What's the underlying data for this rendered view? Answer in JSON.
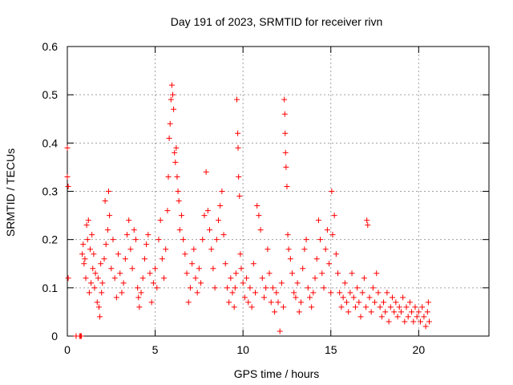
{
  "chart_data": {
    "type": "scatter",
    "title": "Day 191 of 2023, SRMTID for receiver rivn",
    "xlabel": "GPS time / hours",
    "ylabel": "SRMTID / TECUs",
    "xlim": [
      0,
      24
    ],
    "ylim": [
      0,
      0.6
    ],
    "xticks": [
      "0",
      "5",
      "10",
      "15",
      "20"
    ],
    "xtick_values": [
      0,
      5,
      10,
      15,
      20
    ],
    "yticks": [
      "0",
      "0.1",
      "0.2",
      "0.3",
      "0.4",
      "0.5",
      "0.6"
    ],
    "ytick_values": [
      0,
      0.1,
      0.2,
      0.3,
      0.4,
      0.5,
      0.6
    ],
    "grid": true,
    "marker": "+",
    "color": "#ff0000",
    "series": [
      {
        "name": "SRMTID",
        "points": [
          [
            0.0,
            0.39
          ],
          [
            0.0,
            0.33
          ],
          [
            0.05,
            0.31
          ],
          [
            0.05,
            0.12
          ],
          [
            0.5,
            0.0
          ],
          [
            0.7,
            0.0
          ],
          [
            0.75,
            0.0
          ],
          [
            0.8,
            0.0
          ],
          [
            0.85,
            0.17
          ],
          [
            0.9,
            0.19
          ],
          [
            0.95,
            0.15
          ],
          [
            1.0,
            0.16
          ],
          [
            1.05,
            0.12
          ],
          [
            1.1,
            0.23
          ],
          [
            1.15,
            0.2
          ],
          [
            1.2,
            0.24
          ],
          [
            1.25,
            0.09
          ],
          [
            1.3,
            0.18
          ],
          [
            1.35,
            0.11
          ],
          [
            1.4,
            0.21
          ],
          [
            1.45,
            0.14
          ],
          [
            1.5,
            0.17
          ],
          [
            1.55,
            0.1
          ],
          [
            1.6,
            0.13
          ],
          [
            1.7,
            0.07
          ],
          [
            1.75,
            0.12
          ],
          [
            1.8,
            0.06
          ],
          [
            1.85,
            0.04
          ],
          [
            1.9,
            0.15
          ],
          [
            1.95,
            0.09
          ],
          [
            2.0,
            0.11
          ],
          [
            2.1,
            0.16
          ],
          [
            2.15,
            0.28
          ],
          [
            2.2,
            0.19
          ],
          [
            2.3,
            0.22
          ],
          [
            2.35,
            0.3
          ],
          [
            2.4,
            0.25
          ],
          [
            2.5,
            0.14
          ],
          [
            2.6,
            0.2
          ],
          [
            2.7,
            0.12
          ],
          [
            2.8,
            0.08
          ],
          [
            2.9,
            0.17
          ],
          [
            3.0,
            0.13
          ],
          [
            3.1,
            0.09
          ],
          [
            3.2,
            0.11
          ],
          [
            3.3,
            0.16
          ],
          [
            3.4,
            0.21
          ],
          [
            3.5,
            0.24
          ],
          [
            3.6,
            0.18
          ],
          [
            3.7,
            0.14
          ],
          [
            3.8,
            0.22
          ],
          [
            3.9,
            0.2
          ],
          [
            4.0,
            0.1
          ],
          [
            4.05,
            0.08
          ],
          [
            4.1,
            0.06
          ],
          [
            4.2,
            0.09
          ],
          [
            4.3,
            0.12
          ],
          [
            4.4,
            0.16
          ],
          [
            4.5,
            0.19
          ],
          [
            4.6,
            0.21
          ],
          [
            4.7,
            0.13
          ],
          [
            4.8,
            0.07
          ],
          [
            4.9,
            0.11
          ],
          [
            5.0,
            0.14
          ],
          [
            5.1,
            0.1
          ],
          [
            5.2,
            0.2
          ],
          [
            5.3,
            0.24
          ],
          [
            5.4,
            0.16
          ],
          [
            5.5,
            0.12
          ],
          [
            5.6,
            0.18
          ],
          [
            5.7,
            0.26
          ],
          [
            5.75,
            0.33
          ],
          [
            5.8,
            0.41
          ],
          [
            5.85,
            0.44
          ],
          [
            5.9,
            0.49
          ],
          [
            5.95,
            0.52
          ],
          [
            6.0,
            0.5
          ],
          [
            6.05,
            0.47
          ],
          [
            6.1,
            0.38
          ],
          [
            6.15,
            0.36
          ],
          [
            6.2,
            0.39
          ],
          [
            6.25,
            0.33
          ],
          [
            6.3,
            0.3
          ],
          [
            6.35,
            0.28
          ],
          [
            6.4,
            0.22
          ],
          [
            6.5,
            0.25
          ],
          [
            6.6,
            0.2
          ],
          [
            6.7,
            0.17
          ],
          [
            6.8,
            0.13
          ],
          [
            6.9,
            0.07
          ],
          [
            7.0,
            0.1
          ],
          [
            7.1,
            0.15
          ],
          [
            7.2,
            0.18
          ],
          [
            7.3,
            0.12
          ],
          [
            7.4,
            0.09
          ],
          [
            7.5,
            0.14
          ],
          [
            7.6,
            0.11
          ],
          [
            7.7,
            0.2
          ],
          [
            7.8,
            0.25
          ],
          [
            7.9,
            0.34
          ],
          [
            8.0,
            0.26
          ],
          [
            8.1,
            0.22
          ],
          [
            8.2,
            0.18
          ],
          [
            8.3,
            0.14
          ],
          [
            8.4,
            0.1
          ],
          [
            8.5,
            0.2
          ],
          [
            8.6,
            0.24
          ],
          [
            8.7,
            0.27
          ],
          [
            8.8,
            0.3
          ],
          [
            8.9,
            0.21
          ],
          [
            9.0,
            0.15
          ],
          [
            9.1,
            0.1
          ],
          [
            9.2,
            0.07
          ],
          [
            9.3,
            0.12
          ],
          [
            9.4,
            0.09
          ],
          [
            9.5,
            0.06
          ],
          [
            9.55,
            0.1
          ],
          [
            9.6,
            0.13
          ],
          [
            9.65,
            0.49
          ],
          [
            9.7,
            0.42
          ],
          [
            9.72,
            0.39
          ],
          [
            9.75,
            0.33
          ],
          [
            9.8,
            0.29
          ],
          [
            9.85,
            0.17
          ],
          [
            9.9,
            0.14
          ],
          [
            10.0,
            0.11
          ],
          [
            10.1,
            0.08
          ],
          [
            10.2,
            0.12
          ],
          [
            10.3,
            0.07
          ],
          [
            10.4,
            0.1
          ],
          [
            10.5,
            0.06
          ],
          [
            10.6,
            0.15
          ],
          [
            10.7,
            0.09
          ],
          [
            10.8,
            0.27
          ],
          [
            10.9,
            0.25
          ],
          [
            11.0,
            0.22
          ],
          [
            11.1,
            0.12
          ],
          [
            11.2,
            0.08
          ],
          [
            11.3,
            0.1
          ],
          [
            11.4,
            0.18
          ],
          [
            11.5,
            0.13
          ],
          [
            11.6,
            0.07
          ],
          [
            11.7,
            0.1
          ],
          [
            11.8,
            0.05
          ],
          [
            11.9,
            0.09
          ],
          [
            12.0,
            0.07
          ],
          [
            12.1,
            0.01
          ],
          [
            12.2,
            0.11
          ],
          [
            12.3,
            0.06
          ],
          [
            12.35,
            0.49
          ],
          [
            12.38,
            0.46
          ],
          [
            12.4,
            0.42
          ],
          [
            12.42,
            0.38
          ],
          [
            12.45,
            0.35
          ],
          [
            12.5,
            0.31
          ],
          [
            12.55,
            0.21
          ],
          [
            12.6,
            0.18
          ],
          [
            12.7,
            0.16
          ],
          [
            12.8,
            0.13
          ],
          [
            12.9,
            0.09
          ],
          [
            13.0,
            0.08
          ],
          [
            13.1,
            0.11
          ],
          [
            13.2,
            0.05
          ],
          [
            13.3,
            0.07
          ],
          [
            13.4,
            0.14
          ],
          [
            13.5,
            0.18
          ],
          [
            13.6,
            0.2
          ],
          [
            13.7,
            0.1
          ],
          [
            13.8,
            0.08
          ],
          [
            13.9,
            0.06
          ],
          [
            14.0,
            0.09
          ],
          [
            14.1,
            0.12
          ],
          [
            14.2,
            0.16
          ],
          [
            14.3,
            0.24
          ],
          [
            14.4,
            0.2
          ],
          [
            14.5,
            0.13
          ],
          [
            14.6,
            0.1
          ],
          [
            14.7,
            0.18
          ],
          [
            14.8,
            0.22
          ],
          [
            14.9,
            0.15
          ],
          [
            15.0,
            0.09
          ],
          [
            15.05,
            0.3
          ],
          [
            15.1,
            0.21
          ],
          [
            15.2,
            0.25
          ],
          [
            15.3,
            0.17
          ],
          [
            15.4,
            0.13
          ],
          [
            15.5,
            0.09
          ],
          [
            15.6,
            0.06
          ],
          [
            15.7,
            0.08
          ],
          [
            15.8,
            0.11
          ],
          [
            15.9,
            0.07
          ],
          [
            16.0,
            0.05
          ],
          [
            16.1,
            0.09
          ],
          [
            16.2,
            0.13
          ],
          [
            16.3,
            0.08
          ],
          [
            16.4,
            0.06
          ],
          [
            16.5,
            0.1
          ],
          [
            16.6,
            0.07
          ],
          [
            16.7,
            0.04
          ],
          [
            16.8,
            0.09
          ],
          [
            16.9,
            0.12
          ],
          [
            17.0,
            0.06
          ],
          [
            17.05,
            0.24
          ],
          [
            17.1,
            0.23
          ],
          [
            17.2,
            0.08
          ],
          [
            17.3,
            0.05
          ],
          [
            17.4,
            0.1
          ],
          [
            17.5,
            0.07
          ],
          [
            17.6,
            0.13
          ],
          [
            17.7,
            0.09
          ],
          [
            17.8,
            0.06
          ],
          [
            17.9,
            0.04
          ],
          [
            18.0,
            0.07
          ],
          [
            18.1,
            0.05
          ],
          [
            18.2,
            0.09
          ],
          [
            18.3,
            0.03
          ],
          [
            18.4,
            0.06
          ],
          [
            18.5,
            0.08
          ],
          [
            18.6,
            0.05
          ],
          [
            18.7,
            0.07
          ],
          [
            18.8,
            0.04
          ],
          [
            18.9,
            0.06
          ],
          [
            19.0,
            0.05
          ],
          [
            19.1,
            0.08
          ],
          [
            19.2,
            0.03
          ],
          [
            19.3,
            0.06
          ],
          [
            19.4,
            0.04
          ],
          [
            19.5,
            0.07
          ],
          [
            19.6,
            0.05
          ],
          [
            19.7,
            0.03
          ],
          [
            19.8,
            0.06
          ],
          [
            19.9,
            0.04
          ],
          [
            20.0,
            0.05
          ],
          [
            20.1,
            0.03
          ],
          [
            20.2,
            0.06
          ],
          [
            20.3,
            0.04
          ],
          [
            20.4,
            0.02
          ],
          [
            20.5,
            0.05
          ],
          [
            20.55,
            0.07
          ],
          [
            20.6,
            0.03
          ]
        ]
      }
    ]
  }
}
